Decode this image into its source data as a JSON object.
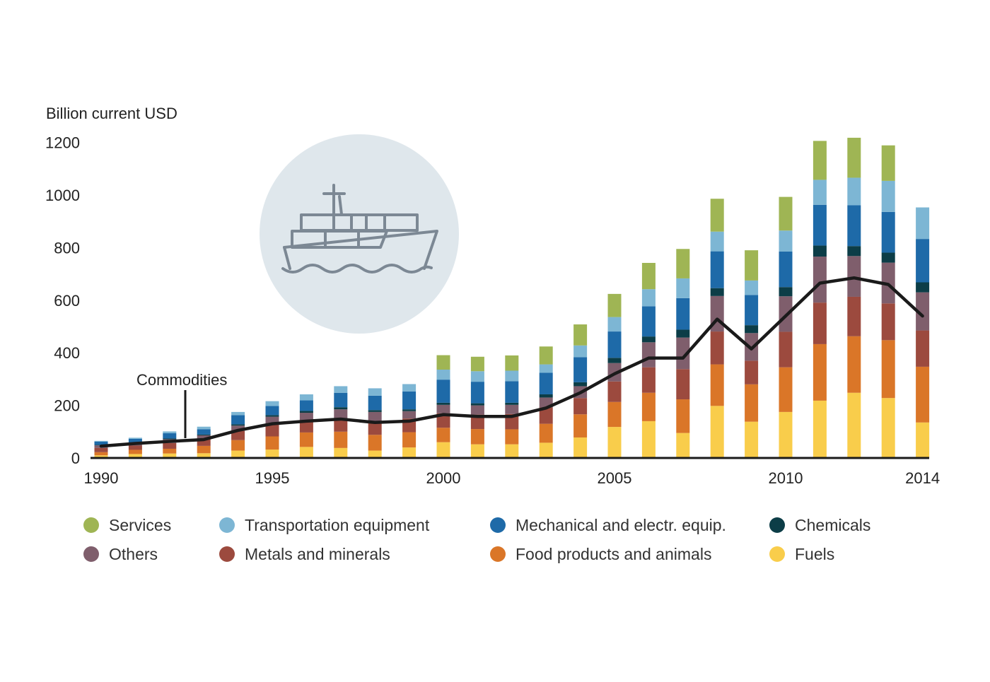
{
  "chart_data": {
    "type": "bar",
    "stacked": true,
    "y_axis_label": "Billion current USD",
    "ylim": [
      0,
      1200
    ],
    "y_ticks": [
      0,
      200,
      400,
      600,
      800,
      1000,
      1200
    ],
    "x_tick_labels": [
      "1990",
      "1995",
      "2000",
      "2005",
      "2010",
      "2014"
    ],
    "categories": [
      "1990",
      "1991",
      "1992",
      "1993",
      "1994",
      "1995",
      "1996",
      "1997",
      "1998",
      "1999",
      "2000",
      "2001",
      "2002",
      "2003",
      "2004",
      "2005",
      "2006",
      "2007",
      "2008",
      "2009",
      "2010",
      "2011",
      "2012",
      "2013",
      "2014"
    ],
    "series": [
      {
        "name": "Fuels",
        "color": "#f9cd4b",
        "values": [
          10,
          15,
          17,
          18,
          28,
          32,
          42,
          38,
          28,
          40,
          60,
          52,
          52,
          58,
          78,
          118,
          140,
          95,
          198,
          138,
          175,
          218,
          248,
          228,
          135
        ]
      },
      {
        "name": "Food products and animals",
        "color": "#da7628",
        "values": [
          12,
          16,
          18,
          28,
          40,
          50,
          55,
          62,
          60,
          58,
          55,
          58,
          57,
          72,
          88,
          95,
          108,
          128,
          158,
          142,
          170,
          215,
          215,
          220,
          212
        ]
      },
      {
        "name": "Metals and minerals",
        "color": "#9c4a3e",
        "values": [
          16,
          16,
          22,
          25,
          35,
          45,
          45,
          50,
          52,
          52,
          55,
          55,
          58,
          62,
          62,
          78,
          97,
          115,
          125,
          90,
          135,
          158,
          150,
          140,
          138
        ]
      },
      {
        "name": "Others",
        "color": "#7f5e6c",
        "values": [
          10,
          10,
          14,
          15,
          20,
          30,
          30,
          35,
          35,
          28,
          32,
          35,
          35,
          38,
          45,
          70,
          95,
          120,
          135,
          105,
          135,
          175,
          155,
          155,
          145
        ]
      },
      {
        "name": "Chemicals",
        "color": "#0c3d47",
        "values": [
          2,
          2,
          3,
          3,
          5,
          6,
          7,
          8,
          7,
          7,
          8,
          8,
          8,
          12,
          15,
          20,
          22,
          30,
          30,
          30,
          35,
          42,
          38,
          38,
          38
        ]
      },
      {
        "name": "Mechanical and electr. equip.",
        "color": "#1e6aa8",
        "values": [
          12,
          14,
          20,
          20,
          35,
          35,
          40,
          55,
          55,
          68,
          88,
          82,
          82,
          82,
          95,
          100,
          115,
          120,
          140,
          115,
          135,
          155,
          155,
          155,
          165
        ]
      },
      {
        "name": "Transportation equipment",
        "color": "#7db6d4",
        "values": [
          3,
          4,
          7,
          10,
          12,
          18,
          23,
          25,
          28,
          28,
          38,
          40,
          40,
          32,
          45,
          55,
          65,
          75,
          75,
          55,
          80,
          95,
          105,
          118,
          120
        ]
      },
      {
        "name": "Services",
        "color": "#9fb554",
        "values": [
          0,
          0,
          0,
          0,
          0,
          0,
          0,
          0,
          0,
          0,
          55,
          55,
          58,
          68,
          80,
          88,
          100,
          112,
          125,
          115,
          128,
          148,
          152,
          135,
          0
        ]
      }
    ],
    "commodities_line": {
      "name": "Commodities",
      "color": "#1a1a1a",
      "values": [
        45,
        55,
        63,
        70,
        105,
        130,
        140,
        148,
        135,
        140,
        165,
        158,
        158,
        190,
        248,
        320,
        380,
        380,
        528,
        415,
        540,
        665,
        685,
        660,
        540
      ]
    },
    "annotation": "Commodities",
    "legend": [
      {
        "label": "Services",
        "color": "#9fb554"
      },
      {
        "label": "Transportation equipment",
        "color": "#7db6d4"
      },
      {
        "label": "Mechanical and electr. equip.",
        "color": "#1e6aa8"
      },
      {
        "label": "Chemicals",
        "color": "#0c3d47"
      },
      {
        "label": "Others",
        "color": "#7f5e6c"
      },
      {
        "label": "Metals and minerals",
        "color": "#9c4a3e"
      },
      {
        "label": "Food products and animals",
        "color": "#da7628"
      },
      {
        "label": "Fuels",
        "color": "#f9cd4b"
      }
    ],
    "legend_placement": "bottom",
    "grid": false
  },
  "icons": {
    "ship": "cargo-ship-icon"
  }
}
